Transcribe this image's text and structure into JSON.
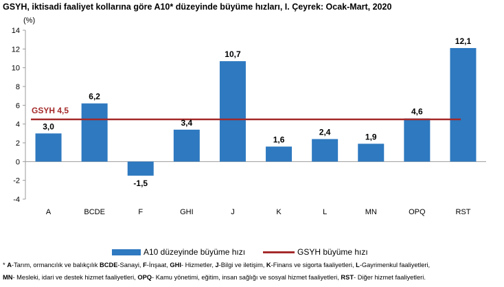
{
  "chart_data": {
    "type": "bar",
    "title": "GSYH, iktisadi faaliyet kollarına göre A10* düzeyinde büyüme hızları, I. Çeyrek: Ocak-Mart, 2020",
    "ylabel": "(%)",
    "xlabel": "",
    "categories": [
      "A",
      "BCDE",
      "F",
      "GHI",
      "J",
      "K",
      "L",
      "MN",
      "OPQ",
      "RST"
    ],
    "values": [
      3.0,
      6.2,
      -1.5,
      3.4,
      10.7,
      1.6,
      2.4,
      1.9,
      4.6,
      12.1
    ],
    "value_labels": [
      "3,0",
      "6,2",
      "-1,5",
      "3,4",
      "10,7",
      "1,6",
      "2,4",
      "1,9",
      "4,6",
      "12,1"
    ],
    "ylim": [
      -4,
      14
    ],
    "yticks": [
      -4,
      -2,
      0,
      2,
      4,
      6,
      8,
      10,
      12,
      14
    ],
    "reference_line": {
      "name": "GSYH büyüme hızı",
      "value": 4.5,
      "label": "GSYH 4,5"
    },
    "legend": [
      "A10 düzeyinde büyüme hızı",
      "GSYH büyüme hızı"
    ],
    "legend_position": "bottom",
    "grid": false,
    "colors": {
      "bar": "#2e79c0",
      "line": "#a52a2a",
      "ref_label": "#a52a2a"
    }
  },
  "footnote": [
    [
      {
        "t": "* ",
        "b": false
      },
      {
        "t": "A",
        "b": true
      },
      {
        "t": "-Tarım, ormancılık ve balıkçılık ",
        "b": false
      },
      {
        "t": "BCDE",
        "b": true
      },
      {
        "t": "-Sanayi, ",
        "b": false
      },
      {
        "t": "F",
        "b": true
      },
      {
        "t": "-İnşaat, ",
        "b": false
      },
      {
        "t": "GHI",
        "b": true
      },
      {
        "t": "- Hizmetler, ",
        "b": false
      },
      {
        "t": "J",
        "b": true
      },
      {
        "t": "-Bilgi ve iletişim, ",
        "b": false
      },
      {
        "t": "K",
        "b": true
      },
      {
        "t": "-Finans ve sigorta faaliyetleri, ",
        "b": false
      },
      {
        "t": "L",
        "b": true
      },
      {
        "t": "-Gayrimenkul faaliyetleri,",
        "b": false
      }
    ],
    [
      {
        "t": "MN",
        "b": true
      },
      {
        "t": "- Mesleki, idari ve destek hizmet faaliyetleri, ",
        "b": false
      },
      {
        "t": "OPQ",
        "b": true
      },
      {
        "t": "- Kamu yönetimi, eğitim, insan sağlığı ve sosyal hizmet faaliyetleri, ",
        "b": false
      },
      {
        "t": "RST",
        "b": true
      },
      {
        "t": "- Diğer hizmet faaliyetleri.",
        "b": false
      }
    ]
  ]
}
